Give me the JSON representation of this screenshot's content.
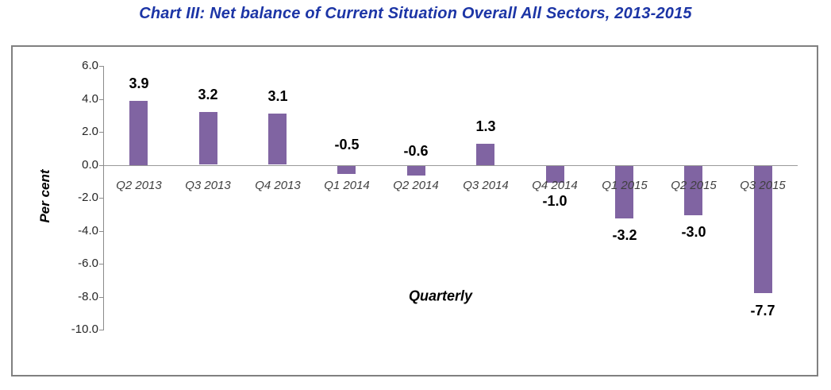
{
  "chart_data": {
    "type": "bar",
    "title": "Chart III: Net balance of Current Situation Overall All Sectors, 2013-2015",
    "xlabel": "Quarterly",
    "ylabel": "Per cent",
    "ylim": [
      -10.0,
      6.0
    ],
    "y_tick_step": 2.0,
    "y_ticks": [
      "6.0",
      "4.0",
      "2.0",
      "0.0",
      "-2.0",
      "-4.0",
      "-6.0",
      "-8.0",
      "-10.0"
    ],
    "grid": "off",
    "legend": "none",
    "bar_color": "#8064A2",
    "title_color": "#1C35A6",
    "categories": [
      "Q2 2013",
      "Q3 2013",
      "Q4 2013",
      "Q1 2014",
      "Q2 2014",
      "Q3 2014",
      "Q4 2014",
      "Q1 2015",
      "Q2 2015",
      "Q3 2015"
    ],
    "values": [
      3.9,
      3.2,
      3.1,
      -0.5,
      -0.6,
      1.3,
      -1.0,
      -3.2,
      -3.0,
      -7.7
    ],
    "points": [
      {
        "category": "Q2 2013",
        "value": 3.9,
        "value_label": "3.9",
        "label_placement": "above-bar"
      },
      {
        "category": "Q3 2013",
        "value": 3.2,
        "value_label": "3.2",
        "label_placement": "above-bar"
      },
      {
        "category": "Q4 2013",
        "value": 3.1,
        "value_label": "3.1",
        "label_placement": "above-bar"
      },
      {
        "category": "Q1 2014",
        "value": -0.5,
        "value_label": "-0.5",
        "label_placement": "above-axis",
        "label_gap": 26
      },
      {
        "category": "Q2 2014",
        "value": -0.6,
        "value_label": "-0.6",
        "label_placement": "above-axis",
        "label_gap": 18
      },
      {
        "category": "Q3 2014",
        "value": 1.3,
        "value_label": "1.3",
        "label_placement": "above-bar"
      },
      {
        "category": "Q4 2014",
        "value": -1.0,
        "value_label": "-1.0",
        "label_placement": "below-bar",
        "label_gap": 25
      },
      {
        "category": "Q1 2015",
        "value": -3.2,
        "value_label": "-3.2",
        "label_placement": "below-bar"
      },
      {
        "category": "Q2 2015",
        "value": -3.0,
        "value_label": "-3.0",
        "label_placement": "below-bar"
      },
      {
        "category": "Q3 2015",
        "value": -7.7,
        "value_label": "-7.7",
        "label_placement": "below-bar",
        "label_gap": 24
      }
    ]
  }
}
